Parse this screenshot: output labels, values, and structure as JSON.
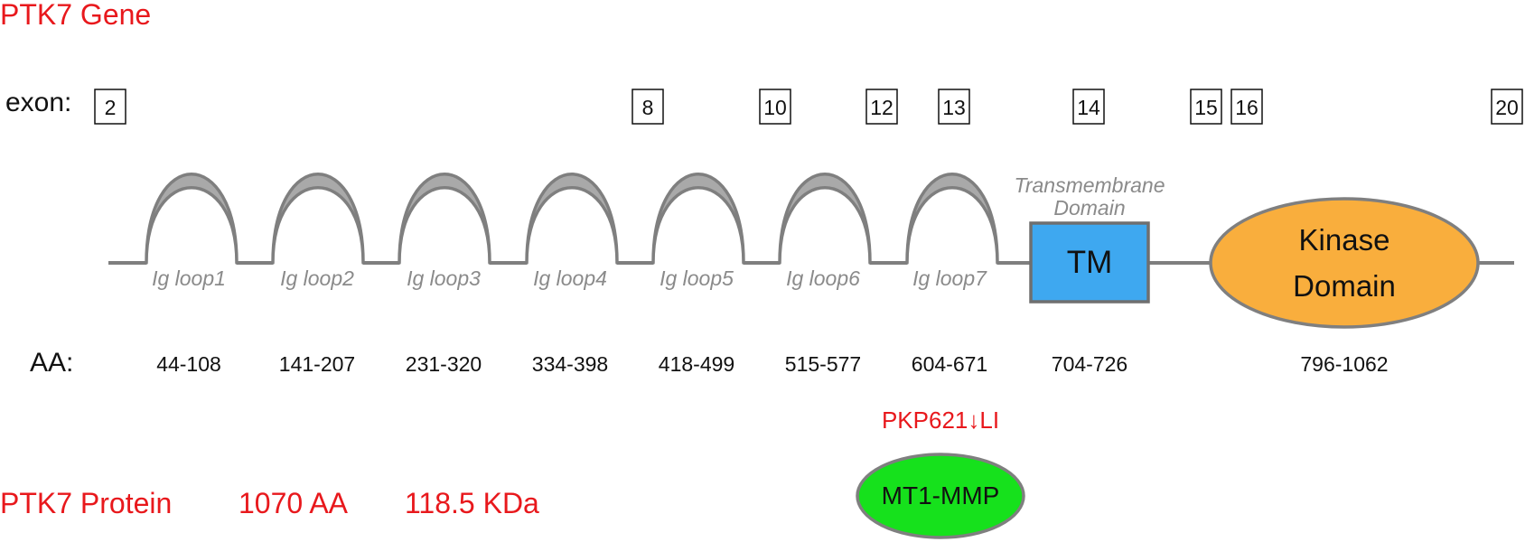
{
  "gene_title": "PTK7 Gene",
  "exon_label": "exon:",
  "exons": [
    "2",
    "8",
    "10",
    "12",
    "13",
    "14",
    "15",
    "16",
    "20"
  ],
  "ig_loops": [
    "Ig loop1",
    "Ig loop2",
    "Ig loop3",
    "Ig loop4",
    "Ig loop5",
    "Ig loop6",
    "Ig loop7"
  ],
  "tm": {
    "caption_line1": "Transmembrane",
    "caption_line2": "Domain",
    "label": "TM"
  },
  "kinase": {
    "line1": "Kinase",
    "line2": "Domain"
  },
  "aa_label": "AA:",
  "aa_ranges": [
    "44-108",
    "141-207",
    "231-320",
    "334-398",
    "418-499",
    "515-577",
    "604-671",
    "704-726",
    "796-1062"
  ],
  "cleavage_site": "PKP621↓LI",
  "protease": "MT1-MMP",
  "protein": {
    "name": "PTK7 Protein",
    "length": "1070 AA",
    "mass": "118.5 KDa"
  },
  "colors": {
    "title_red": "#e8181c",
    "line_grey": "#7f7f7f",
    "loop_fill": "#a9a9a9",
    "tm_fill": "#3ea8f0",
    "kinase_fill": "#f9ae3d",
    "protease_fill": "#16e11c"
  }
}
